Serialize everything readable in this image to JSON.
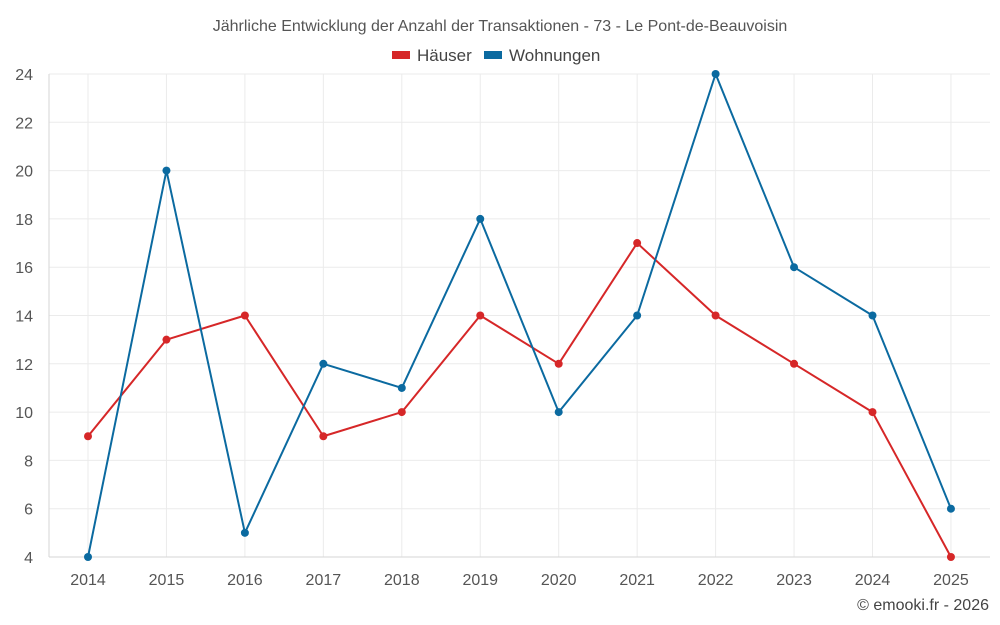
{
  "chart_data": {
    "type": "line",
    "title": "Jährliche Entwicklung der Anzahl der Transaktionen - 73 - Le Pont-de-Beauvoisin",
    "categories": [
      "2014",
      "2015",
      "2016",
      "2017",
      "2018",
      "2019",
      "2020",
      "2021",
      "2022",
      "2023",
      "2024",
      "2025"
    ],
    "series": [
      {
        "name": "Häuser",
        "color": "#d62728",
        "values": [
          9,
          13,
          14,
          9,
          10,
          14,
          12,
          17,
          14,
          12,
          10,
          4
        ]
      },
      {
        "name": "Wohnungen",
        "color": "#0b6aa0",
        "values": [
          4,
          20,
          5,
          12,
          11,
          18,
          10,
          14,
          24,
          16,
          14,
          6
        ]
      }
    ],
    "ylim": [
      4,
      24
    ],
    "yticks": [
      4,
      6,
      8,
      10,
      12,
      14,
      16,
      18,
      20,
      22,
      24
    ],
    "grid": true,
    "legend_position": "top-center",
    "xlabel": "",
    "ylabel": ""
  },
  "credit": "© emooki.fr - 2026"
}
